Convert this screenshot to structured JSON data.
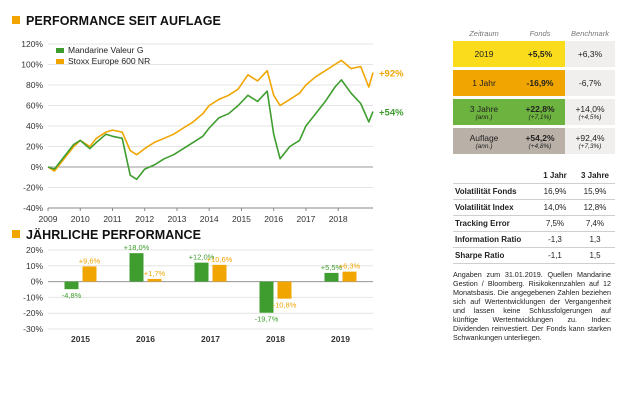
{
  "titles": {
    "performance": "PERFORMANCE SEIT AUFLAGE",
    "annual": "JÄHRLICHE PERFORMANCE"
  },
  "colors": {
    "fund": "#3f9d2f",
    "benchmark": "#f0a500",
    "accent": "#f0a500",
    "row1": "#fbdc1c",
    "row2": "#f0a500",
    "row3": "#6cb33f",
    "row4": "#b9b0a8"
  },
  "chart_data": [
    {
      "type": "line",
      "title": "PERFORMANCE SEIT AUFLAGE",
      "x_ticks": [
        "2009",
        "2010",
        "2011",
        "2012",
        "2013",
        "2014",
        "2015",
        "2016",
        "2017",
        "2018"
      ],
      "xlim": [
        2009.0,
        2019.08
      ],
      "y_ticks": [
        "-40%",
        "-20%",
        "0%",
        "20%",
        "40%",
        "60%",
        "80%",
        "100%",
        "120%"
      ],
      "ylim": [
        -40,
        120
      ],
      "end_labels": [
        "+92%",
        "+54%"
      ],
      "series": [
        {
          "name": "Mandarine Valeur G",
          "x": [
            2009.0,
            2009.2,
            2009.5,
            2009.8,
            2010.0,
            2010.3,
            2010.5,
            2010.8,
            2011.0,
            2011.3,
            2011.55,
            2011.75,
            2012.0,
            2012.3,
            2012.6,
            2012.9,
            2013.2,
            2013.5,
            2013.8,
            2014.0,
            2014.3,
            2014.6,
            2014.9,
            2015.2,
            2015.5,
            2015.8,
            2016.0,
            2016.2,
            2016.5,
            2016.8,
            2017.0,
            2017.3,
            2017.6,
            2017.9,
            2018.1,
            2018.4,
            2018.7,
            2018.95,
            2019.08
          ],
          "y": [
            0,
            -2,
            10,
            22,
            26,
            18,
            24,
            32,
            30,
            28,
            -8,
            -12,
            -2,
            2,
            8,
            12,
            18,
            24,
            30,
            38,
            48,
            52,
            60,
            70,
            64,
            74,
            32,
            8,
            20,
            26,
            40,
            52,
            64,
            78,
            85,
            72,
            62,
            44,
            54
          ]
        },
        {
          "name": "Stoxx Europe 600 NR",
          "x": [
            2009.0,
            2009.2,
            2009.5,
            2009.8,
            2010.0,
            2010.3,
            2010.5,
            2010.8,
            2011.0,
            2011.3,
            2011.55,
            2011.75,
            2012.0,
            2012.3,
            2012.6,
            2012.9,
            2013.2,
            2013.5,
            2013.8,
            2014.0,
            2014.3,
            2014.6,
            2014.9,
            2015.2,
            2015.5,
            2015.8,
            2016.0,
            2016.2,
            2016.5,
            2016.8,
            2017.0,
            2017.3,
            2017.6,
            2017.9,
            2018.1,
            2018.4,
            2018.7,
            2018.95,
            2019.08
          ],
          "y": [
            0,
            -4,
            8,
            20,
            26,
            20,
            28,
            34,
            36,
            34,
            16,
            12,
            18,
            24,
            28,
            32,
            38,
            44,
            52,
            60,
            66,
            70,
            76,
            90,
            84,
            94,
            70,
            60,
            66,
            72,
            80,
            88,
            94,
            100,
            104,
            96,
            98,
            78,
            92
          ]
        }
      ]
    },
    {
      "type": "bar",
      "title": "JÄHRLICHE PERFORMANCE",
      "categories": [
        "2015",
        "2016",
        "2017",
        "2018",
        "2019"
      ],
      "y_ticks": [
        "-30%",
        "-20%",
        "-10%",
        "0%",
        "10%",
        "20%"
      ],
      "ylim": [
        -30,
        20
      ],
      "series": [
        {
          "name": "Mandarine Valeur G",
          "values": [
            -4.8,
            18.0,
            12.0,
            -19.7,
            5.5
          ],
          "labels": [
            "-4,8%",
            "+18,0%",
            "+12,0%",
            "-19,7%",
            "+5,5%"
          ]
        },
        {
          "name": "Stoxx Europe 600 NR",
          "values": [
            9.6,
            1.7,
            10.6,
            -10.8,
            6.3
          ],
          "labels": [
            "+9,6%",
            "+1,7%",
            "+10,6%",
            "-10,8%",
            "+6,3%"
          ]
        }
      ]
    }
  ],
  "perf_table": {
    "headers": [
      "Zeitraum",
      "Fonds",
      "Benchmark"
    ],
    "rows": [
      {
        "label": "2019",
        "label_sub": "",
        "fund": "+5,5%",
        "fund_sub": "",
        "bench": "+6,3%",
        "bench_sub": ""
      },
      {
        "label": "1 Jahr",
        "label_sub": "",
        "fund": "-16,9%",
        "fund_sub": "",
        "bench": "-6,7%",
        "bench_sub": ""
      },
      {
        "label": "3 Jahre",
        "label_sub": "(ann.)",
        "fund": "+22,8%",
        "fund_sub": "(+7,1%)",
        "bench": "+14,0%",
        "bench_sub": "(+4,5%)"
      },
      {
        "label": "Auflage",
        "label_sub": "(ann.)",
        "fund": "+54,2%",
        "fund_sub": "(+4,8%)",
        "bench": "+92,4%",
        "bench_sub": "(+7,3%)"
      }
    ]
  },
  "risk_table": {
    "headers": [
      "",
      "1 Jahr",
      "3 Jahre"
    ],
    "rows": [
      {
        "label": "Volatilität Fonds",
        "y1": "16,9%",
        "y3": "15,9%"
      },
      {
        "label": "Volatilität Index",
        "y1": "14,0%",
        "y3": "12,8%"
      },
      {
        "label": "Tracking Error",
        "y1": "7,5%",
        "y3": "7,4%"
      },
      {
        "label": "Information Ratio",
        "y1": "-1,3",
        "y3": "1,3"
      },
      {
        "label": "Sharpe Ratio",
        "y1": "-1,1",
        "y3": "1,5"
      }
    ]
  },
  "notes": "Angaben zum 31.01.2019. Quellen Mandarine Gestion / Bloomberg. Risikokennzahlen auf 12 Monatsbasis. Die angegebenen Zahlen beziehen sich auf Wertentwicklungen der Vergangenheit und lassen keine Schlussfolgerungen auf künftige Wertentwicklungen zu. Index: Dividenden reinvestiert. Der Fonds kann starken Schwankungen unterliegen."
}
